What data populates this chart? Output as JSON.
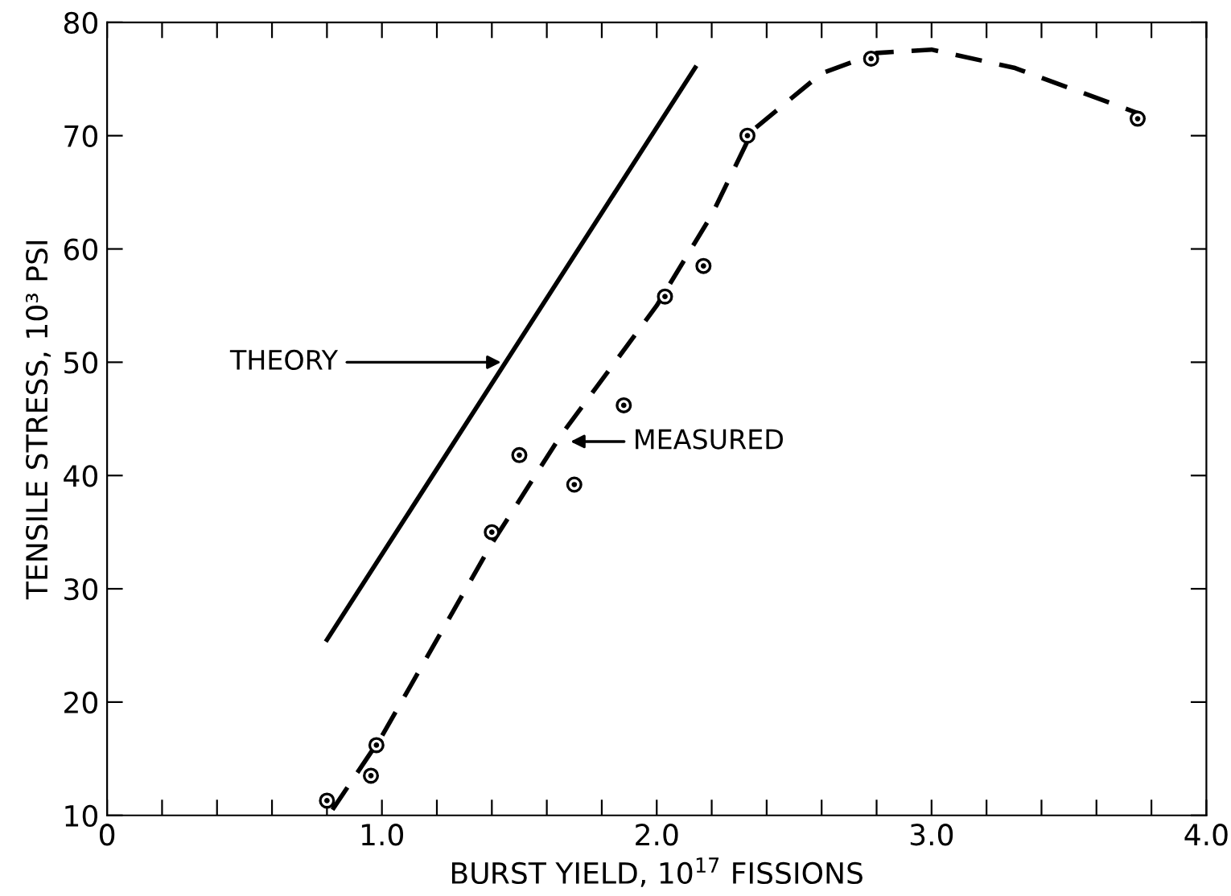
{
  "chart_data": {
    "type": "scatter",
    "xlabel": "BURST YIELD, 10$^{17}$ FISSIONS",
    "ylabel": "TENSILE STRESS, 10³ PSI",
    "xlim": [
      0,
      4.0
    ],
    "ylim": [
      10,
      80
    ],
    "xticks": [
      0,
      {
        "value": 0.2,
        "label": null
      },
      {
        "value": 0.4,
        "label": null
      },
      {
        "value": 0.6,
        "label": null
      },
      {
        "value": 0.8,
        "label": null
      },
      {
        "value": 1.0,
        "label": "1.0"
      },
      {
        "value": 1.2,
        "label": null
      },
      {
        "value": 1.4,
        "label": null
      },
      {
        "value": 1.6,
        "label": null
      },
      {
        "value": 1.8,
        "label": null
      },
      {
        "value": 2.0,
        "label": "2.0"
      },
      {
        "value": 2.2,
        "label": null
      },
      {
        "value": 2.4,
        "label": null
      },
      {
        "value": 2.6,
        "label": null
      },
      {
        "value": 2.8,
        "label": null
      },
      {
        "value": 3.0,
        "label": "3.0"
      },
      {
        "value": 3.2,
        "label": null
      },
      {
        "value": 3.4,
        "label": null
      },
      {
        "value": 3.6,
        "label": null
      },
      {
        "value": 3.8,
        "label": null
      },
      {
        "value": 4.0,
        "label": "4.0"
      }
    ],
    "yticks": [
      10,
      20,
      30,
      40,
      50,
      60,
      70,
      80
    ],
    "grid": false,
    "legend": false,
    "series": [
      {
        "marker": "circle",
        "color": "#000000",
        "x": [
          0.8,
          0.96,
          0.98,
          1.4,
          1.5,
          1.7,
          1.88,
          2.03,
          2.17,
          2.33,
          2.78,
          3.75
        ],
        "values": [
          11.3,
          13.5,
          16.2,
          35,
          41.8,
          39.2,
          46.2,
          55.8,
          58.5,
          70,
          76.8,
          71.5
        ]
      },
      {
        "type": "line",
        "line_style": "solid",
        "color": "#000000",
        "x": [
          0.8,
          2.14
        ],
        "values": [
          25.5,
          76
        ]
      },
      {
        "type": "line",
        "line_style": "dashed",
        "color": "#000000",
        "x": [
          0.82,
          1.0,
          1.4,
          1.65,
          2.0,
          2.2,
          2.35,
          2.6,
          2.8,
          3.0,
          3.3,
          3.75
        ],
        "values": [
          10.5,
          17,
          34,
          43.5,
          55,
          63,
          70.5,
          75.5,
          77.3,
          77.6,
          76,
          72
        ]
      }
    ],
    "annotations": [
      {
        "text": "THEORY",
        "x": 1.45,
        "y": 50
      },
      {
        "text": "MEASURED",
        "x": 1.67,
        "y": 43
      }
    ]
  }
}
